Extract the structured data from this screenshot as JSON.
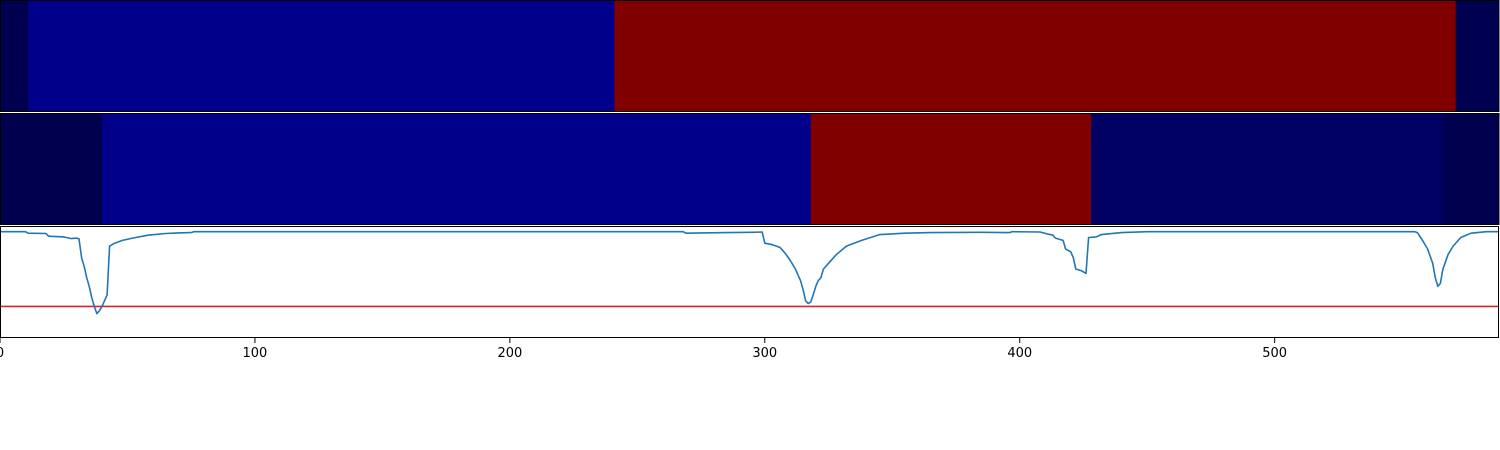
{
  "chart_data": [
    {
      "type": "heatmap",
      "title": "",
      "xlim": [
        0,
        588
      ],
      "colormap": "jet",
      "segments": [
        {
          "start": 0,
          "end": 11,
          "color": "#000050"
        },
        {
          "start": 11,
          "end": 241,
          "color": "#00008b"
        },
        {
          "start": 241,
          "end": 571,
          "color": "#800000"
        },
        {
          "start": 571,
          "end": 588,
          "color": "#000050"
        }
      ]
    },
    {
      "type": "heatmap",
      "title": "",
      "xlim": [
        0,
        588
      ],
      "colormap": "jet",
      "segments": [
        {
          "start": 0,
          "end": 40,
          "color": "#00004f"
        },
        {
          "start": 40,
          "end": 318,
          "color": "#00008b"
        },
        {
          "start": 318,
          "end": 428,
          "color": "#800000"
        },
        {
          "start": 428,
          "end": 566,
          "color": "#000064"
        },
        {
          "start": 566,
          "end": 588,
          "color": "#00004f"
        }
      ]
    },
    {
      "type": "line",
      "title": "",
      "xlabel": "",
      "ylabel": "",
      "xlim": [
        0,
        588
      ],
      "ylim": [
        -0.37,
        0.02
      ],
      "xticks": [
        0,
        100,
        200,
        300,
        400,
        500
      ],
      "grid": false,
      "series": [
        {
          "color": "#1f77b4",
          "points": [
            [
              0,
              0.0
            ],
            [
              10,
              0.0
            ],
            [
              11,
              -0.005
            ],
            [
              18,
              -0.006
            ],
            [
              19,
              -0.015
            ],
            [
              20,
              -0.016
            ],
            [
              25,
              -0.018
            ],
            [
              26,
              -0.02
            ],
            [
              28,
              -0.024
            ],
            [
              30,
              -0.022
            ],
            [
              31,
              -0.025
            ],
            [
              32,
              -0.09
            ],
            [
              33,
              -0.12
            ],
            [
              34,
              -0.16
            ],
            [
              35,
              -0.19
            ],
            [
              36,
              -0.23
            ],
            [
              37,
              -0.26
            ],
            [
              38,
              -0.285
            ],
            [
              39,
              -0.275
            ],
            [
              40,
              -0.26
            ],
            [
              42,
              -0.22
            ],
            [
              43,
              -0.05
            ],
            [
              45,
              -0.04
            ],
            [
              48,
              -0.03
            ],
            [
              52,
              -0.022
            ],
            [
              58,
              -0.012
            ],
            [
              65,
              -0.006
            ],
            [
              70,
              -0.004
            ],
            [
              75,
              -0.003
            ],
            [
              76,
              0.0
            ],
            [
              100,
              0.0
            ],
            [
              200,
              0.0
            ],
            [
              268,
              0.0
            ],
            [
              269,
              -0.005
            ],
            [
              285,
              -0.003
            ],
            [
              295,
              -0.002
            ],
            [
              299,
              -0.001
            ],
            [
              300,
              -0.04
            ],
            [
              303,
              -0.045
            ],
            [
              306,
              -0.055
            ],
            [
              308,
              -0.075
            ],
            [
              310,
              -0.1
            ],
            [
              312,
              -0.13
            ],
            [
              313,
              -0.15
            ],
            [
              314,
              -0.17
            ],
            [
              315,
              -0.2
            ],
            [
              316,
              -0.24
            ],
            [
              317,
              -0.25
            ],
            [
              318,
              -0.245
            ],
            [
              319,
              -0.22
            ],
            [
              320,
              -0.19
            ],
            [
              321,
              -0.17
            ],
            [
              322,
              -0.16
            ],
            [
              323,
              -0.13
            ],
            [
              325,
              -0.11
            ],
            [
              328,
              -0.08
            ],
            [
              332,
              -0.05
            ],
            [
              338,
              -0.03
            ],
            [
              345,
              -0.01
            ],
            [
              355,
              -0.005
            ],
            [
              365,
              -0.003
            ],
            [
              385,
              -0.002
            ],
            [
              395,
              -0.003
            ],
            [
              396,
              -0.003
            ],
            [
              397,
              0.0
            ],
            [
              408,
              -0.001
            ],
            [
              411,
              -0.008
            ],
            [
              413,
              -0.012
            ],
            [
              414,
              -0.022
            ],
            [
              417,
              -0.03
            ],
            [
              418,
              -0.06
            ],
            [
              420,
              -0.07
            ],
            [
              421,
              -0.09
            ],
            [
              422,
              -0.13
            ],
            [
              424,
              -0.135
            ],
            [
              425,
              -0.14
            ],
            [
              426,
              -0.145
            ],
            [
              427,
              -0.02
            ],
            [
              430,
              -0.018
            ],
            [
              432,
              -0.01
            ],
            [
              440,
              -0.003
            ],
            [
              450,
              0.0
            ],
            [
              490,
              0.0
            ],
            [
              555,
              0.0
            ],
            [
              556,
              -0.003
            ],
            [
              558,
              -0.03
            ],
            [
              560,
              -0.06
            ],
            [
              562,
              -0.11
            ],
            [
              563,
              -0.16
            ],
            [
              564,
              -0.19
            ],
            [
              565,
              -0.18
            ],
            [
              566,
              -0.13
            ],
            [
              568,
              -0.08
            ],
            [
              570,
              -0.05
            ],
            [
              573,
              -0.02
            ],
            [
              577,
              -0.005
            ],
            [
              583,
              0.0
            ],
            [
              588,
              0.0
            ]
          ]
        }
      ],
      "threshold": {
        "value": -0.26,
        "color": "#d62728"
      }
    }
  ]
}
